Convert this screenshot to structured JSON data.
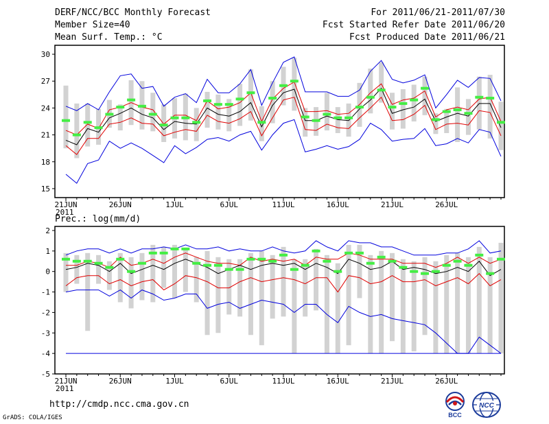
{
  "header": {
    "title": "DERF/NCC/BCC Monthly Forecast",
    "member_size": "Member Size=40",
    "variable": "Mean Surf. Temp.: °C",
    "period": "For 2011/06/21-2011/07/30",
    "fcst_started": "Fcst Started Refer Date 2011/06/20",
    "fcst_produced": "Fcst Produced Date 2011/06/21"
  },
  "footer": {
    "url": "http://cmdp.ncc.cma.gov.cn",
    "credit": "GrADS: COLA/IGES"
  },
  "logos": {
    "bcc_text": "BCC",
    "ncc_text": "NCC"
  },
  "colors": {
    "box": "#d2d2d2",
    "median": "#000000",
    "quartile": "#e00000",
    "extreme": "#0000dd",
    "mean": "#44ee44",
    "frame": "#000000"
  },
  "chart_data": [
    {
      "type": "line",
      "title": "Mean Surf. Temp.: °C",
      "ylim": [
        14,
        31
      ],
      "yticks": [
        "30",
        "27",
        "24",
        "21",
        "18",
        "15"
      ],
      "ytick_values": [
        30,
        27,
        24,
        21,
        18,
        15
      ],
      "xtick_labels": [
        "21JUN",
        "26JUN",
        "1JUL",
        "6JUL",
        "11JUL",
        "16JUL",
        "21JUL",
        "26JUL"
      ],
      "xtick_days": [
        0,
        5,
        10,
        15,
        20,
        25,
        30,
        35
      ],
      "year_label": "2011",
      "series": [
        {
          "name": "max",
          "values": [
            24.2,
            23.7,
            24.5,
            23.8,
            25.8,
            27.6,
            27.8,
            26.2,
            26.4,
            24.2,
            25.2,
            25.6,
            24.6,
            27.2,
            25.7,
            25.7,
            26.7,
            28.3,
            24.3,
            26.8,
            29.1,
            29.7,
            25.8,
            25.8,
            25.8,
            25.3,
            25.3,
            26.0,
            28.1,
            29.3,
            27.2,
            26.8,
            27.1,
            27.7,
            24.0,
            25.5,
            27.1,
            26.3,
            27.4,
            27.3,
            24.8
          ]
        },
        {
          "name": "q75",
          "values": [
            21.5,
            21.0,
            22.2,
            21.7,
            23.8,
            24.1,
            24.6,
            24.1,
            23.8,
            22.2,
            23.2,
            23.2,
            22.6,
            24.8,
            23.9,
            24.1,
            24.6,
            25.7,
            22.5,
            25.0,
            26.2,
            26.9,
            23.6,
            23.6,
            23.7,
            23.3,
            23.4,
            24.4,
            25.7,
            26.7,
            24.4,
            24.9,
            25.1,
            25.9,
            23.0,
            23.8,
            24.1,
            23.8,
            25.0,
            25.2,
            22.5
          ]
        },
        {
          "name": "median",
          "values": [
            20.4,
            19.9,
            21.7,
            21.3,
            22.9,
            23.4,
            24.0,
            23.3,
            22.9,
            21.6,
            22.5,
            22.3,
            22.2,
            24.0,
            23.3,
            23.1,
            23.6,
            24.6,
            21.9,
            24.3,
            25.7,
            26.1,
            22.6,
            22.6,
            23.1,
            22.7,
            22.6,
            23.9,
            24.9,
            26.2,
            23.4,
            23.8,
            24.1,
            25.0,
            22.5,
            23.0,
            23.4,
            23.1,
            24.5,
            24.5,
            21.8
          ]
        },
        {
          "name": "q25",
          "values": [
            19.8,
            18.8,
            20.6,
            20.6,
            22.2,
            22.4,
            22.9,
            22.3,
            22.2,
            20.9,
            21.3,
            21.6,
            21.4,
            23.2,
            22.5,
            22.3,
            22.8,
            23.6,
            20.9,
            22.9,
            24.9,
            25.2,
            21.6,
            21.5,
            22.2,
            21.8,
            21.7,
            22.9,
            24.0,
            25.2,
            22.6,
            22.7,
            23.3,
            24.3,
            21.6,
            22.2,
            22.3,
            22.1,
            23.7,
            23.5,
            20.9
          ]
        },
        {
          "name": "min",
          "values": [
            16.6,
            15.6,
            17.8,
            18.2,
            20.3,
            19.5,
            20.1,
            19.5,
            18.7,
            17.9,
            19.8,
            18.9,
            19.6,
            20.5,
            20.7,
            20.3,
            21.0,
            21.4,
            19.3,
            21.0,
            22.3,
            22.7,
            19.1,
            19.4,
            19.8,
            19.4,
            19.7,
            20.5,
            22.3,
            21.6,
            20.3,
            20.5,
            20.6,
            21.7,
            19.8,
            20.0,
            20.6,
            20.1,
            21.6,
            21.3,
            18.6
          ]
        },
        {
          "name": "mean",
          "values": [
            22.6,
            21.0,
            22.4,
            21.8,
            23.3,
            24.1,
            24.9,
            24.2,
            23.3,
            22.1,
            22.9,
            22.9,
            22.4,
            24.8,
            24.4,
            24.4,
            25.0,
            25.7,
            22.4,
            25.1,
            26.5,
            27.0,
            23.0,
            22.6,
            23.3,
            22.9,
            22.9,
            24.1,
            25.2,
            26.0,
            24.1,
            24.5,
            24.9,
            26.2,
            22.7,
            23.6,
            23.8,
            23.4,
            25.2,
            25.1,
            22.4
          ]
        },
        {
          "name": "box_low",
          "values": [
            19.5,
            18.4,
            19.7,
            19.9,
            21.8,
            21.5,
            22.1,
            21.6,
            21.4,
            20.2,
            20.6,
            20.4,
            20.3,
            21.8,
            21.6,
            21.4,
            22.0,
            22.6,
            20.3,
            22.3,
            24.3,
            23.7,
            20.8,
            20.9,
            21.5,
            21.2,
            20.8,
            21.9,
            23.4,
            24.6,
            21.6,
            21.7,
            22.5,
            23.2,
            21.1,
            21.2,
            20.2,
            21.0,
            21.6,
            20.6,
            19.3
          ]
        },
        {
          "name": "box_high",
          "values": [
            26.5,
            24.5,
            24.5,
            23.9,
            24.9,
            24.4,
            27.1,
            27.0,
            25.7,
            24.4,
            25.1,
            25.6,
            24.0,
            25.8,
            25.5,
            25.0,
            26.7,
            28.3,
            24.2,
            27.0,
            28.6,
            29.6,
            24.0,
            24.1,
            25.7,
            24.1,
            24.5,
            26.8,
            28.4,
            29.1,
            25.7,
            26.1,
            26.6,
            27.5,
            23.4,
            23.9,
            26.3,
            25.0,
            27.5,
            27.7,
            24.7
          ]
        }
      ]
    },
    {
      "type": "line",
      "title": "Prec.: log(mm/d)",
      "ylim": [
        -5,
        2.2
      ],
      "yticks": [
        "2",
        "1",
        "0",
        "-1",
        "-2",
        "-3",
        "-4",
        "-5"
      ],
      "ytick_values": [
        2,
        1,
        0,
        -1,
        -2,
        -3,
        -4,
        -5
      ],
      "xtick_labels": [
        "21JUN",
        "26JUN",
        "1JUL",
        "6JUL",
        "11JUL",
        "16JUL",
        "21JUL",
        "26JUL"
      ],
      "xtick_days": [
        0,
        5,
        10,
        15,
        20,
        25,
        30,
        35
      ],
      "year_label": "2011",
      "series": [
        {
          "name": "max",
          "values": [
            0.8,
            1.0,
            1.1,
            1.1,
            0.9,
            1.1,
            0.9,
            1.1,
            1.1,
            1.2,
            1.1,
            1.3,
            1.1,
            1.1,
            1.2,
            1.0,
            1.1,
            1.0,
            1.0,
            1.2,
            1.0,
            0.9,
            1.0,
            1.5,
            1.2,
            1.0,
            1.5,
            1.4,
            1.4,
            1.2,
            1.2,
            1.0,
            0.8,
            0.8,
            0.8,
            0.9,
            0.9,
            1.1,
            1.5,
            0.9,
            1.0
          ]
        },
        {
          "name": "q75",
          "values": [
            0.3,
            0.3,
            0.5,
            0.4,
            0.2,
            0.7,
            0.3,
            0.4,
            0.6,
            0.4,
            0.7,
            0.9,
            0.7,
            0.5,
            0.4,
            0.4,
            0.3,
            0.7,
            0.5,
            0.6,
            0.5,
            0.6,
            0.3,
            0.7,
            0.6,
            0.6,
            0.9,
            0.8,
            0.6,
            0.6,
            0.6,
            0.4,
            0.4,
            0.4,
            0.2,
            0.4,
            0.7,
            0.4,
            0.7,
            0.4,
            0.6
          ]
        },
        {
          "name": "median",
          "values": [
            0.1,
            0.2,
            0.4,
            0.3,
            0.0,
            0.4,
            -0.1,
            0.1,
            0.3,
            0.1,
            0.4,
            0.6,
            0.4,
            0.2,
            -0.1,
            0.1,
            0.3,
            0.1,
            0.3,
            0.4,
            0.3,
            0.4,
            0.1,
            0.4,
            0.2,
            -0.1,
            0.6,
            0.4,
            0.1,
            0.2,
            0.5,
            0.1,
            0.2,
            0.1,
            -0.1,
            0.0,
            0.2,
            0.0,
            0.5,
            -0.2,
            0.1
          ]
        },
        {
          "name": "q25",
          "values": [
            -0.7,
            -0.3,
            -0.2,
            -0.2,
            -0.6,
            -0.4,
            -0.7,
            -0.5,
            -0.4,
            -0.9,
            -0.6,
            -0.2,
            -0.3,
            -0.5,
            -0.8,
            -0.8,
            -0.5,
            -0.3,
            -0.5,
            -0.4,
            -0.3,
            -0.4,
            -0.6,
            -0.3,
            -0.3,
            -1.0,
            -0.2,
            -0.3,
            -0.6,
            -0.5,
            -0.2,
            -0.5,
            -0.5,
            -0.4,
            -0.7,
            -0.5,
            -0.3,
            -0.6,
            -0.1,
            -0.7,
            -0.4
          ]
        },
        {
          "name": "min",
          "values": [
            -1.0,
            -0.9,
            -0.9,
            -0.9,
            -1.2,
            -0.9,
            -1.3,
            -0.9,
            -1.1,
            -1.4,
            -1.3,
            -1.1,
            -1.1,
            -1.8,
            -1.6,
            -1.5,
            -1.8,
            -1.6,
            -1.4,
            -1.5,
            -1.6,
            -2.0,
            -1.6,
            -1.6,
            -2.1,
            -2.5,
            -1.7,
            -2.0,
            -2.2,
            -2.1,
            -2.3,
            -2.4,
            -2.5,
            -2.6,
            -3.0,
            -3.5,
            -4.0,
            -4.0,
            -3.2,
            -3.6,
            -4.0
          ]
        },
        {
          "name": "floor",
          "values": [
            -4.0,
            -4.0,
            -4.0,
            -4.0,
            -4.0,
            -4.0,
            -4.0,
            -4.0,
            -4.0,
            -4.0,
            -4.0,
            -4.0,
            -4.0,
            -4.0,
            -4.0,
            -4.0,
            -4.0,
            -4.0,
            -4.0,
            -4.0,
            -4.0,
            -4.0,
            -4.0,
            -4.0,
            -4.0,
            -4.0,
            -4.0,
            -4.0,
            -4.0,
            -4.0,
            -4.0,
            -4.0,
            -4.0,
            -4.0,
            -4.0,
            -4.0,
            -4.0,
            -4.0,
            -4.0,
            -4.0,
            -4.0
          ]
        },
        {
          "name": "mean",
          "values": [
            0.6,
            0.5,
            0.5,
            0.4,
            0.2,
            0.6,
            0.0,
            0.4,
            0.9,
            0.9,
            1.1,
            1.1,
            0.4,
            0.3,
            0.3,
            0.1,
            0.1,
            0.6,
            0.6,
            0.5,
            0.8,
            0.1,
            0.3,
            1.0,
            0.5,
            0.0,
            0.9,
            0.9,
            0.4,
            0.7,
            0.5,
            0.2,
            0.0,
            -0.1,
            0.0,
            0.3,
            0.5,
            0.3,
            0.8,
            -0.1,
            0.6
          ]
        },
        {
          "name": "box_low",
          "values": [
            -1.0,
            -0.6,
            -2.9,
            -0.6,
            -0.9,
            -1.5,
            -1.8,
            -1.4,
            -1.5,
            -0.8,
            -1.3,
            -1.0,
            -1.5,
            -3.1,
            -3.0,
            -2.1,
            -2.2,
            -3.1,
            -3.6,
            -2.3,
            -2.2,
            -4.0,
            -2.2,
            -1.9,
            -4.0,
            -4.0,
            -3.6,
            -1.3,
            -4.0,
            -4.0,
            -3.4,
            -4.0,
            -3.9,
            -3.1,
            -4.0,
            -4.0,
            -4.0,
            -4.0,
            -4.0,
            -4.0,
            -4.0
          ]
        },
        {
          "name": "box_high",
          "values": [
            0.9,
            0.8,
            0.9,
            0.8,
            0.5,
            0.9,
            0.7,
            0.9,
            1.3,
            1.2,
            1.3,
            1.1,
            0.7,
            1.0,
            0.7,
            0.6,
            0.6,
            0.9,
            1.0,
            0.8,
            1.2,
            0.6,
            0.6,
            1.1,
            0.8,
            0.4,
            1.3,
            1.3,
            0.8,
            1.0,
            0.9,
            0.6,
            0.5,
            0.7,
            0.5,
            0.8,
            0.9,
            0.7,
            1.2,
            0.7,
            1.4
          ]
        }
      ]
    }
  ]
}
